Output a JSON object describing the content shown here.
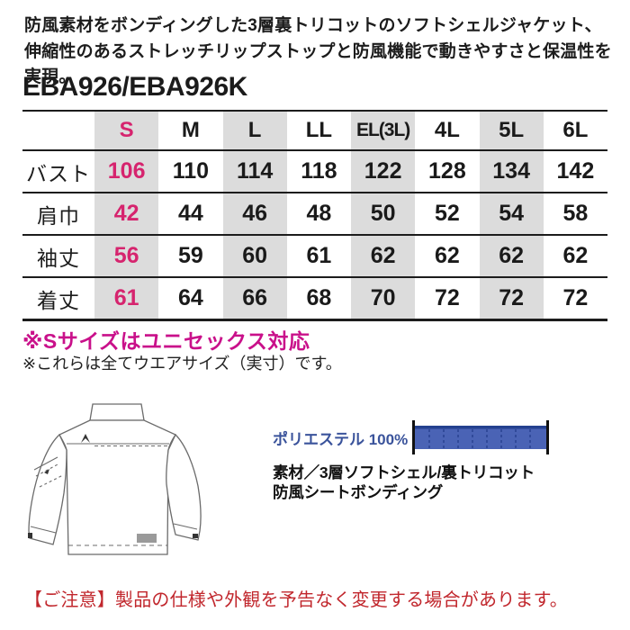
{
  "lead": {
    "line1": "防風素材をボンディングした3層裏トリコットのソフトシェルジャケット、",
    "line2": "伸縮性のあるストレッチリップストップと防風機能で動きやすさと保温性を実現。"
  },
  "product_code": "EBA926/EBA926K",
  "size_table": {
    "columns": [
      "S",
      "M",
      "L",
      "LL",
      "EL(3L)",
      "4L",
      "5L",
      "6L"
    ],
    "highlight_column": "S",
    "shaded_columns": [
      "S",
      "L",
      "EL(3L)",
      "5L"
    ],
    "rows": [
      {
        "label": "バスト",
        "values": [
          "106",
          "110",
          "114",
          "118",
          "122",
          "128",
          "134",
          "142"
        ]
      },
      {
        "label": "肩巾",
        "values": [
          "42",
          "44",
          "46",
          "48",
          "50",
          "52",
          "54",
          "58"
        ]
      },
      {
        "label": "袖丈",
        "values": [
          "56",
          "59",
          "60",
          "61",
          "62",
          "62",
          "62",
          "62"
        ]
      },
      {
        "label": "着丈",
        "values": [
          "61",
          "64",
          "66",
          "68",
          "70",
          "72",
          "72",
          "72"
        ]
      }
    ]
  },
  "notes": {
    "unisex": "※Sサイズはユニセックス対応",
    "actual_size": "※これらは全てウエアサイズ（実寸）です。"
  },
  "material": {
    "composition_label": "ポリエステル 100%",
    "composition_percent": 100,
    "description_line1": "素材／3層ソフトシェル/裏トリコット",
    "description_line2": "防風シートボンディング"
  },
  "footer": {
    "notice": "【ご注意】製品の仕様や外観を予告なく変更する場合があります。"
  },
  "illustration": {
    "name": "jacket-back-view"
  },
  "colors": {
    "accent_pink": "#d6246e",
    "note_magenta": "#c9108a",
    "material_blue": "#3a539b",
    "swatch_blue": "#4a63b5",
    "swatch_blue_dark": "#24418f",
    "notice_red": "#c1272d",
    "stripe_gray": "#dcdcdc",
    "line_black": "#1c1c1c"
  }
}
